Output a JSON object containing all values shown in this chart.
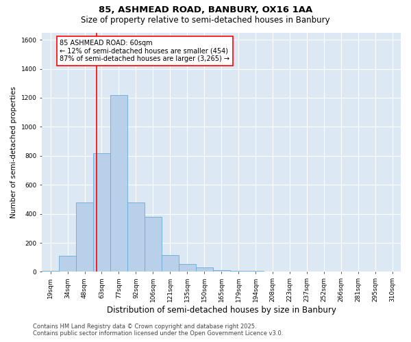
{
  "title1": "85, ASHMEAD ROAD, BANBURY, OX16 1AA",
  "title2": "Size of property relative to semi-detached houses in Banbury",
  "xlabel": "Distribution of semi-detached houses by size in Banbury",
  "ylabel": "Number of semi-detached properties",
  "categories": [
    "19sqm",
    "34sqm",
    "48sqm",
    "63sqm",
    "77sqm",
    "92sqm",
    "106sqm",
    "121sqm",
    "135sqm",
    "150sqm",
    "165sqm",
    "179sqm",
    "194sqm",
    "208sqm",
    "223sqm",
    "237sqm",
    "252sqm",
    "266sqm",
    "281sqm",
    "295sqm",
    "310sqm"
  ],
  "values": [
    5,
    110,
    480,
    820,
    1220,
    480,
    380,
    115,
    55,
    30,
    10,
    5,
    8,
    3,
    2,
    0,
    0,
    0,
    2,
    0,
    0
  ],
  "bar_color": "#b8d0ea",
  "bar_edge_color": "#6aaad4",
  "bg_color": "#dce9f5",
  "grid_color": "#ffffff",
  "vline_color": "red",
  "vline_position": 2.7,
  "annotation_text": "85 ASHMEAD ROAD: 60sqm\n← 12% of semi-detached houses are smaller (454)\n87% of semi-detached houses are larger (3,265) →",
  "annotation_box_color": "white",
  "annotation_box_edge": "red",
  "ylim": [
    0,
    1650
  ],
  "yticks": [
    0,
    200,
    400,
    600,
    800,
    1000,
    1200,
    1400,
    1600
  ],
  "footer": "Contains HM Land Registry data © Crown copyright and database right 2025.\nContains public sector information licensed under the Open Government Licence v3.0.",
  "title1_fontsize": 9.5,
  "title2_fontsize": 8.5,
  "xlabel_fontsize": 8.5,
  "ylabel_fontsize": 7.5,
  "tick_fontsize": 6.5,
  "annotation_fontsize": 7,
  "footer_fontsize": 6
}
